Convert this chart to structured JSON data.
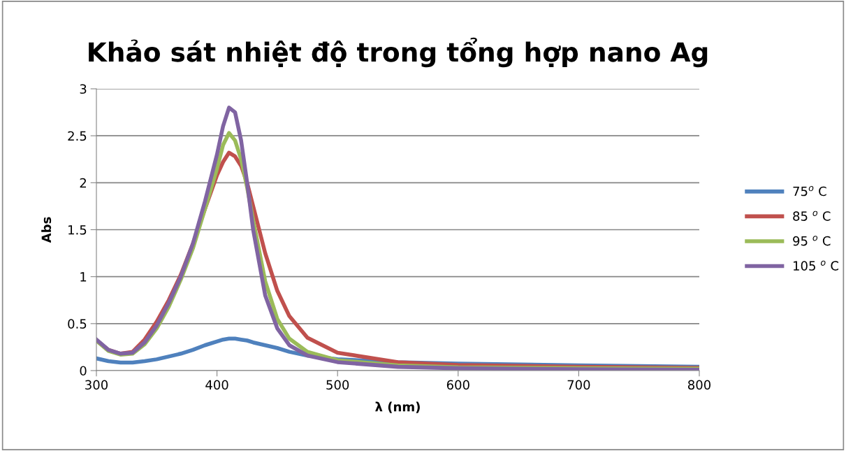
{
  "chart_data": {
    "type": "line",
    "title": "Khảo sát nhiệt độ trong tổng hợp nano Ag",
    "xlabel": "λ (nm)",
    "ylabel": "Abs",
    "x": [
      300,
      310,
      320,
      330,
      340,
      350,
      360,
      370,
      380,
      390,
      400,
      405,
      410,
      415,
      420,
      425,
      430,
      440,
      450,
      460,
      475,
      500,
      550,
      600,
      700,
      800
    ],
    "series": [
      {
        "name": "75$^{o}$ C",
        "color": "#4f81bd",
        "values": [
          0.13,
          0.1,
          0.085,
          0.085,
          0.1,
          0.12,
          0.15,
          0.18,
          0.22,
          0.27,
          0.31,
          0.33,
          0.34,
          0.34,
          0.33,
          0.32,
          0.3,
          0.27,
          0.24,
          0.2,
          0.16,
          0.12,
          0.09,
          0.075,
          0.055,
          0.04
        ]
      },
      {
        "name": "85 $^{o}$ C",
        "color": "#c0504d",
        "values": [
          0.32,
          0.22,
          0.18,
          0.2,
          0.33,
          0.52,
          0.75,
          1.02,
          1.35,
          1.72,
          2.08,
          2.22,
          2.32,
          2.28,
          2.18,
          2.0,
          1.75,
          1.25,
          0.85,
          0.58,
          0.35,
          0.19,
          0.09,
          0.06,
          0.04,
          0.03
        ]
      },
      {
        "name": "95 $^{o}$ C",
        "color": "#9bbb59",
        "values": [
          0.32,
          0.21,
          0.17,
          0.18,
          0.28,
          0.45,
          0.68,
          0.97,
          1.3,
          1.72,
          2.15,
          2.4,
          2.53,
          2.45,
          2.25,
          1.95,
          1.6,
          0.95,
          0.55,
          0.34,
          0.2,
          0.11,
          0.055,
          0.035,
          0.025,
          0.02
        ]
      },
      {
        "name": "105 $^{o}$ C",
        "color": "#8064a2",
        "values": [
          0.33,
          0.22,
          0.18,
          0.19,
          0.3,
          0.48,
          0.72,
          1.0,
          1.35,
          1.8,
          2.3,
          2.6,
          2.8,
          2.75,
          2.45,
          2.0,
          1.5,
          0.8,
          0.45,
          0.27,
          0.16,
          0.09,
          0.04,
          0.025,
          0.015,
          0.01
        ]
      }
    ],
    "xlim": [
      300,
      800
    ],
    "xticks": [
      300,
      400,
      500,
      600,
      700,
      800
    ],
    "ylim": [
      0,
      3
    ],
    "yticks": [
      0,
      0.5,
      1,
      1.5,
      2,
      2.5,
      3
    ],
    "grid": "y",
    "legend": "right",
    "marker": "none",
    "line_style": "solid"
  }
}
